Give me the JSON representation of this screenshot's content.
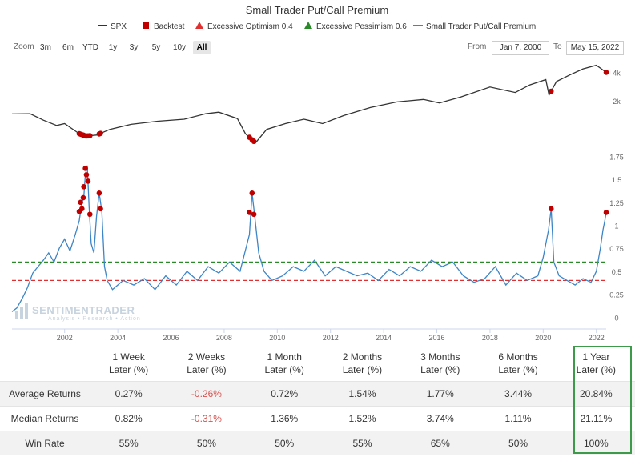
{
  "chart_data": {
    "type": "line",
    "title": "Small Trader Put/Call Premium",
    "legend": {
      "placement": "top",
      "items": [
        {
          "name": "SPX",
          "color": "#333333",
          "marker": "line"
        },
        {
          "name": "Backtest",
          "color": "#c00000",
          "marker": "square"
        },
        {
          "name": "Excessive Optimism 0.4",
          "color": "#e03030",
          "marker": "triangle"
        },
        {
          "name": "Excessive Pessimism 0.6",
          "color": "#2a8a2a",
          "marker": "triangle"
        },
        {
          "name": "Small Trader Put/Call Premium",
          "color": "#3d85c6",
          "marker": "line"
        }
      ]
    },
    "x_ticks": [
      "2002",
      "2004",
      "2006",
      "2008",
      "2010",
      "2012",
      "2014",
      "2016",
      "2018",
      "2020",
      "2022"
    ],
    "x_range": [
      2000.02,
      2022.37
    ],
    "spx_axis": {
      "ticks": [
        "2k",
        "4k"
      ],
      "scale": "log"
    },
    "spx_series": {
      "name": "SPX",
      "x": [
        2000.02,
        2000.7,
        2001.2,
        2001.7,
        2002.0,
        2002.55,
        2002.8,
        2003.2,
        2003.7,
        2004.5,
        2005.5,
        2006.5,
        2007.3,
        2007.8,
        2008.5,
        2008.8,
        2009.18,
        2009.6,
        2010.3,
        2011.0,
        2011.7,
        2012.5,
        2013.5,
        2014.5,
        2015.5,
        2016.1,
        2016.9,
        2018.0,
        2018.95,
        2019.5,
        2020.1,
        2020.22,
        2020.5,
        2021.0,
        2021.5,
        2022.0,
        2022.37
      ],
      "y": [
        1455,
        1460,
        1250,
        1100,
        1150,
        900,
        850,
        870,
        1000,
        1130,
        1220,
        1280,
        1460,
        1520,
        1300,
        900,
        720,
        1000,
        1150,
        1280,
        1150,
        1400,
        1700,
        1950,
        2070,
        1900,
        2200,
        2800,
        2450,
        2950,
        3350,
        2300,
        3200,
        3750,
        4350,
        4750,
        4000
      ]
    },
    "pcp_axis": {
      "ticks": [
        "0",
        "0.25",
        "0.5",
        "0.75",
        "1",
        "1.25",
        "1.5",
        "1.75"
      ],
      "range": [
        -0.05,
        1.78
      ]
    },
    "pcp_series": {
      "name": "Small Trader Put/Call Premium",
      "x": [
        2000.02,
        2000.2,
        2000.4,
        2000.6,
        2000.8,
        2001.0,
        2001.2,
        2001.4,
        2001.6,
        2001.8,
        2002.0,
        2002.2,
        2002.4,
        2002.55,
        2002.65,
        2002.72,
        2002.78,
        2002.85,
        2002.92,
        2003.0,
        2003.1,
        2003.2,
        2003.3,
        2003.4,
        2003.5,
        2003.6,
        2003.8,
        2004.2,
        2004.6,
        2005.0,
        2005.4,
        2005.8,
        2006.2,
        2006.6,
        2007.0,
        2007.4,
        2007.8,
        2008.2,
        2008.6,
        2008.95,
        2009.05,
        2009.15,
        2009.3,
        2009.5,
        2009.8,
        2010.2,
        2010.6,
        2011.0,
        2011.4,
        2011.8,
        2012.2,
        2012.6,
        2013.0,
        2013.4,
        2013.8,
        2014.2,
        2014.6,
        2015.0,
        2015.4,
        2015.8,
        2016.2,
        2016.6,
        2017.0,
        2017.4,
        2017.8,
        2018.2,
        2018.6,
        2019.0,
        2019.4,
        2019.8,
        2020.0,
        2020.2,
        2020.3,
        2020.4,
        2020.6,
        2020.9,
        2021.2,
        2021.5,
        2021.8,
        2022.0,
        2022.15,
        2022.25,
        2022.32,
        2022.37
      ],
      "y": [
        0.06,
        0.1,
        0.2,
        0.32,
        0.48,
        0.55,
        0.62,
        0.7,
        0.6,
        0.75,
        0.85,
        0.72,
        0.9,
        1.05,
        1.25,
        1.3,
        1.55,
        1.65,
        1.2,
        0.8,
        0.7,
        1.1,
        1.35,
        1.15,
        0.55,
        0.4,
        0.3,
        0.4,
        0.35,
        0.42,
        0.3,
        0.45,
        0.35,
        0.5,
        0.4,
        0.55,
        0.48,
        0.6,
        0.5,
        0.9,
        1.35,
        1.1,
        0.7,
        0.5,
        0.4,
        0.45,
        0.55,
        0.5,
        0.62,
        0.45,
        0.55,
        0.5,
        0.45,
        0.48,
        0.4,
        0.52,
        0.45,
        0.55,
        0.5,
        0.62,
        0.55,
        0.6,
        0.45,
        0.38,
        0.42,
        0.55,
        0.35,
        0.48,
        0.4,
        0.45,
        0.65,
        0.95,
        1.18,
        0.6,
        0.45,
        0.4,
        0.35,
        0.42,
        0.38,
        0.5,
        0.75,
        0.95,
        1.05,
        1.14
      ]
    },
    "backtest_points": {
      "name": "Backtest",
      "x": [
        2002.55,
        2002.6,
        2002.65,
        2002.7,
        2002.72,
        2002.78,
        2002.82,
        2002.88,
        2002.95,
        2003.3,
        2003.35,
        2008.95,
        2009.05,
        2009.12,
        2020.3,
        2022.37
      ],
      "pcp": [
        1.15,
        1.25,
        1.18,
        1.3,
        1.42,
        1.62,
        1.55,
        1.48,
        1.12,
        1.35,
        1.18,
        1.14,
        1.35,
        1.12,
        1.18,
        1.14
      ]
    },
    "thresholds": [
      {
        "name": "Excessive Optimism 0.4",
        "value": 0.4,
        "color": "#e03030"
      },
      {
        "name": "Excessive Pessimism 0.6",
        "value": 0.6,
        "color": "#2a8a2a"
      }
    ],
    "grid": false
  },
  "toolbar": {
    "zoom_label": "Zoom",
    "zoom_options": [
      "3m",
      "6m",
      "YTD",
      "1y",
      "3y",
      "5y",
      "10y",
      "All"
    ],
    "selected_zoom": "All",
    "from_label": "From",
    "from_value": "Jan 7, 2000",
    "to_label": "To",
    "to_value": "May 15, 2022"
  },
  "watermark": {
    "main": "SENTIMENTRADER",
    "sub": "Analysis • Research • Action"
  },
  "table": {
    "columns": [
      {
        "line1": "1 Week",
        "line2": "Later (%)"
      },
      {
        "line1": "2 Weeks",
        "line2": "Later (%)"
      },
      {
        "line1": "1 Month",
        "line2": "Later (%)"
      },
      {
        "line1": "2 Months",
        "line2": "Later (%)"
      },
      {
        "line1": "3 Months",
        "line2": "Later (%)"
      },
      {
        "line1": "6 Months",
        "line2": "Later (%)"
      },
      {
        "line1": "1 Year",
        "line2": "Later (%)"
      }
    ],
    "rows": [
      {
        "label": "Average Returns",
        "values": [
          "0.27%",
          "-0.26%",
          "0.72%",
          "1.54%",
          "1.77%",
          "3.44%",
          "20.84%"
        ]
      },
      {
        "label": "Median Returns",
        "values": [
          "0.82%",
          "-0.31%",
          "1.36%",
          "1.52%",
          "3.74%",
          "1.11%",
          "21.11%"
        ]
      },
      {
        "label": "Win Rate",
        "values": [
          "55%",
          "50%",
          "50%",
          "55%",
          "65%",
          "50%",
          "100%"
        ]
      }
    ],
    "highlight_color": "#3c9a4a"
  }
}
